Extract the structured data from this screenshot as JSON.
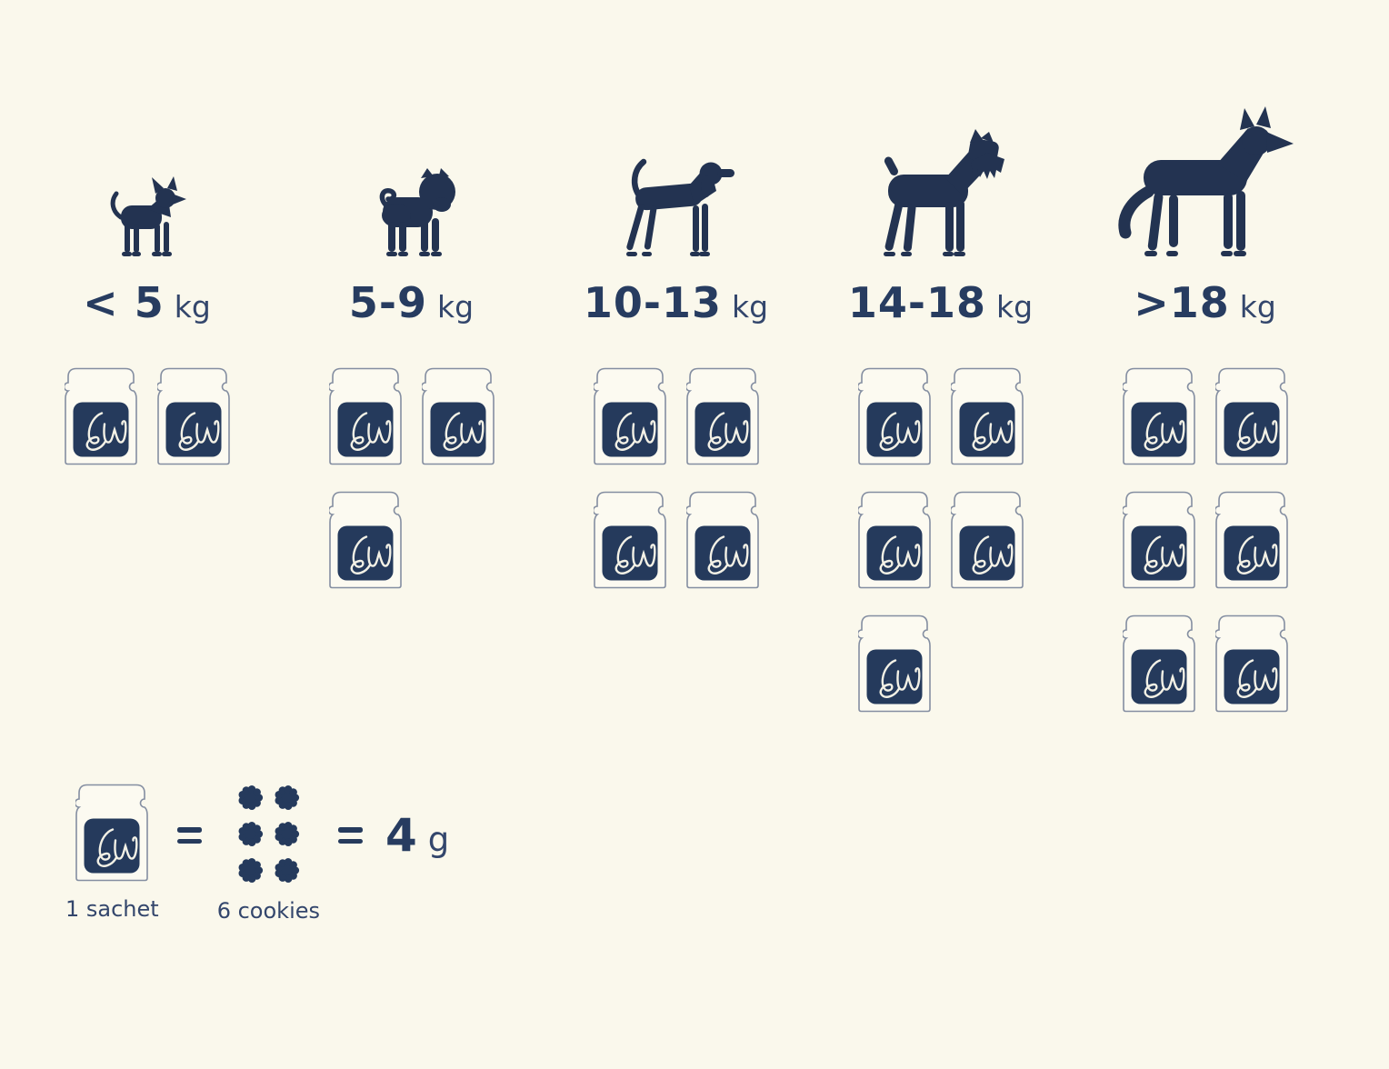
{
  "colors": {
    "background": "#FAF8EC",
    "navy": "#253A5C",
    "dog": "#233351",
    "ink": "#273C60",
    "soft": "#33466C",
    "outline": "#848EA1",
    "pouch": "#FCFAF1",
    "monogram": "#F3F1E6"
  },
  "branding": {
    "monogram": "LW"
  },
  "columns": [
    {
      "breed": "chihuahua",
      "weight_range": "< 5",
      "unit": "kg",
      "sachet_count": 2
    },
    {
      "breed": "pug",
      "weight_range": "5-9",
      "unit": "kg",
      "sachet_count": 3
    },
    {
      "breed": "beagle",
      "weight_range": "10-13",
      "unit": "kg",
      "sachet_count": 4
    },
    {
      "breed": "schnauzer",
      "weight_range": "14-18",
      "unit": "kg",
      "sachet_count": 5
    },
    {
      "breed": "husky",
      "weight_range": ">18",
      "unit": "kg",
      "sachet_count": 6
    }
  ],
  "legend": {
    "sachet_caption": "1 sachet",
    "cookies_caption": "6 cookies",
    "cookie_count": 6,
    "amount_value": "4",
    "amount_unit": "g"
  },
  "chart_data": {
    "type": "pictograph",
    "title": "",
    "categories": [
      "< 5 kg",
      "5-9 kg",
      "10-13 kg",
      "14-18 kg",
      ">18 kg"
    ],
    "values": [
      2,
      3,
      4,
      5,
      6
    ],
    "series_label": "sachets",
    "icon": "sachet",
    "category_icons": [
      "chihuahua",
      "pug",
      "beagle",
      "schnauzer",
      "husky"
    ],
    "note": "1 sachet = 6 cookies = 4 g",
    "ylim": [
      0,
      6
    ],
    "legend_position": "bottom-left"
  }
}
